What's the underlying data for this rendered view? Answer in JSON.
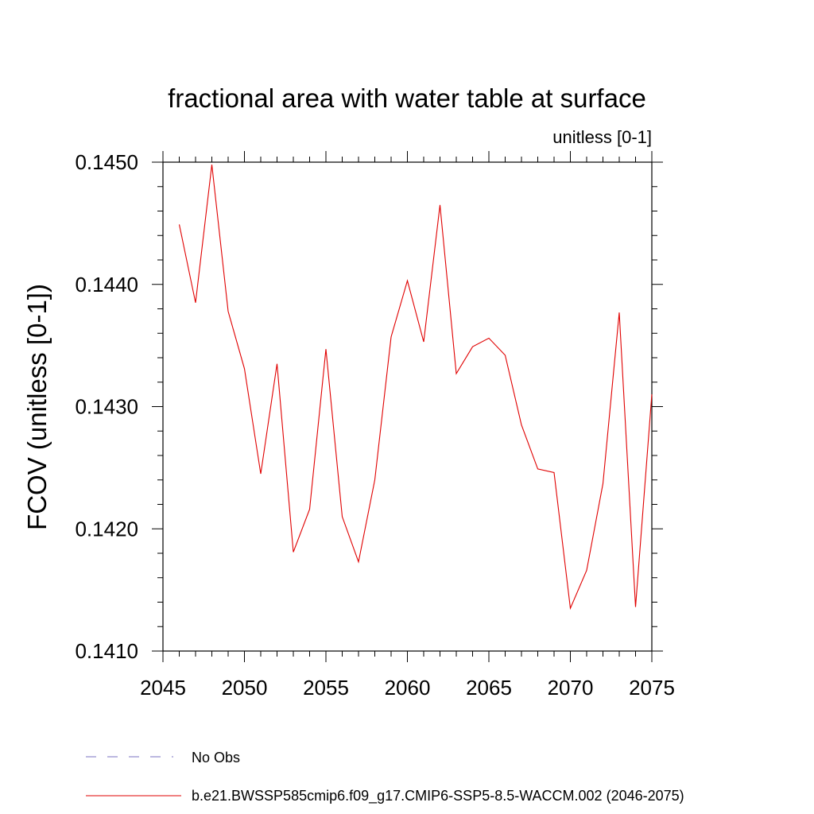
{
  "chart_data": {
    "type": "line",
    "title": "fractional area with water table at surface",
    "subtitle": "unitless [0-1]",
    "ylabel": "FCOV  (unitless [0-1])",
    "xlabel": "",
    "xlim": [
      2045,
      2075
    ],
    "ylim": [
      0.141,
      0.145
    ],
    "x_ticks": [
      2045,
      2050,
      2055,
      2060,
      2065,
      2070,
      2075
    ],
    "y_ticks": [
      0.141,
      0.142,
      0.143,
      0.144,
      0.145
    ],
    "x_tick_labels": [
      "2045",
      "2050",
      "2055",
      "2060",
      "2065",
      "2070",
      "2075"
    ],
    "y_tick_labels": [
      "0.1410",
      "0.1420",
      "0.1430",
      "0.1440",
      "0.1450"
    ],
    "series": [
      {
        "name": "b.e21.BWSSP585cmip6.f09_g17.CMIP6-SSP5-8.5-WACCM.002 (2046-2075)",
        "color": "#e00000",
        "x": [
          2046,
          2047,
          2048,
          2049,
          2050,
          2051,
          2052,
          2053,
          2054,
          2055,
          2056,
          2057,
          2058,
          2059,
          2060,
          2061,
          2062,
          2063,
          2064,
          2065,
          2066,
          2067,
          2068,
          2069,
          2070,
          2071,
          2072,
          2073,
          2074,
          2075
        ],
        "values": [
          0.14449,
          0.14385,
          0.14498,
          0.14378,
          0.14331,
          0.14245,
          0.14335,
          0.14181,
          0.14216,
          0.14347,
          0.1421,
          0.14173,
          0.1424,
          0.14357,
          0.14403,
          0.14353,
          0.14465,
          0.14327,
          0.14349,
          0.14356,
          0.14342,
          0.14285,
          0.14249,
          0.14246,
          0.14135,
          0.14166,
          0.14237,
          0.14377,
          0.14136,
          0.1431
        ]
      }
    ],
    "legend": [
      {
        "label": "No Obs",
        "style": "dashed",
        "color": "#7a70c0"
      },
      {
        "label": "b.e21.BWSSP585cmip6.f09_g17.CMIP6-SSP5-8.5-WACCM.002 (2046-2075)",
        "style": "solid",
        "color": "#e00000"
      }
    ]
  }
}
